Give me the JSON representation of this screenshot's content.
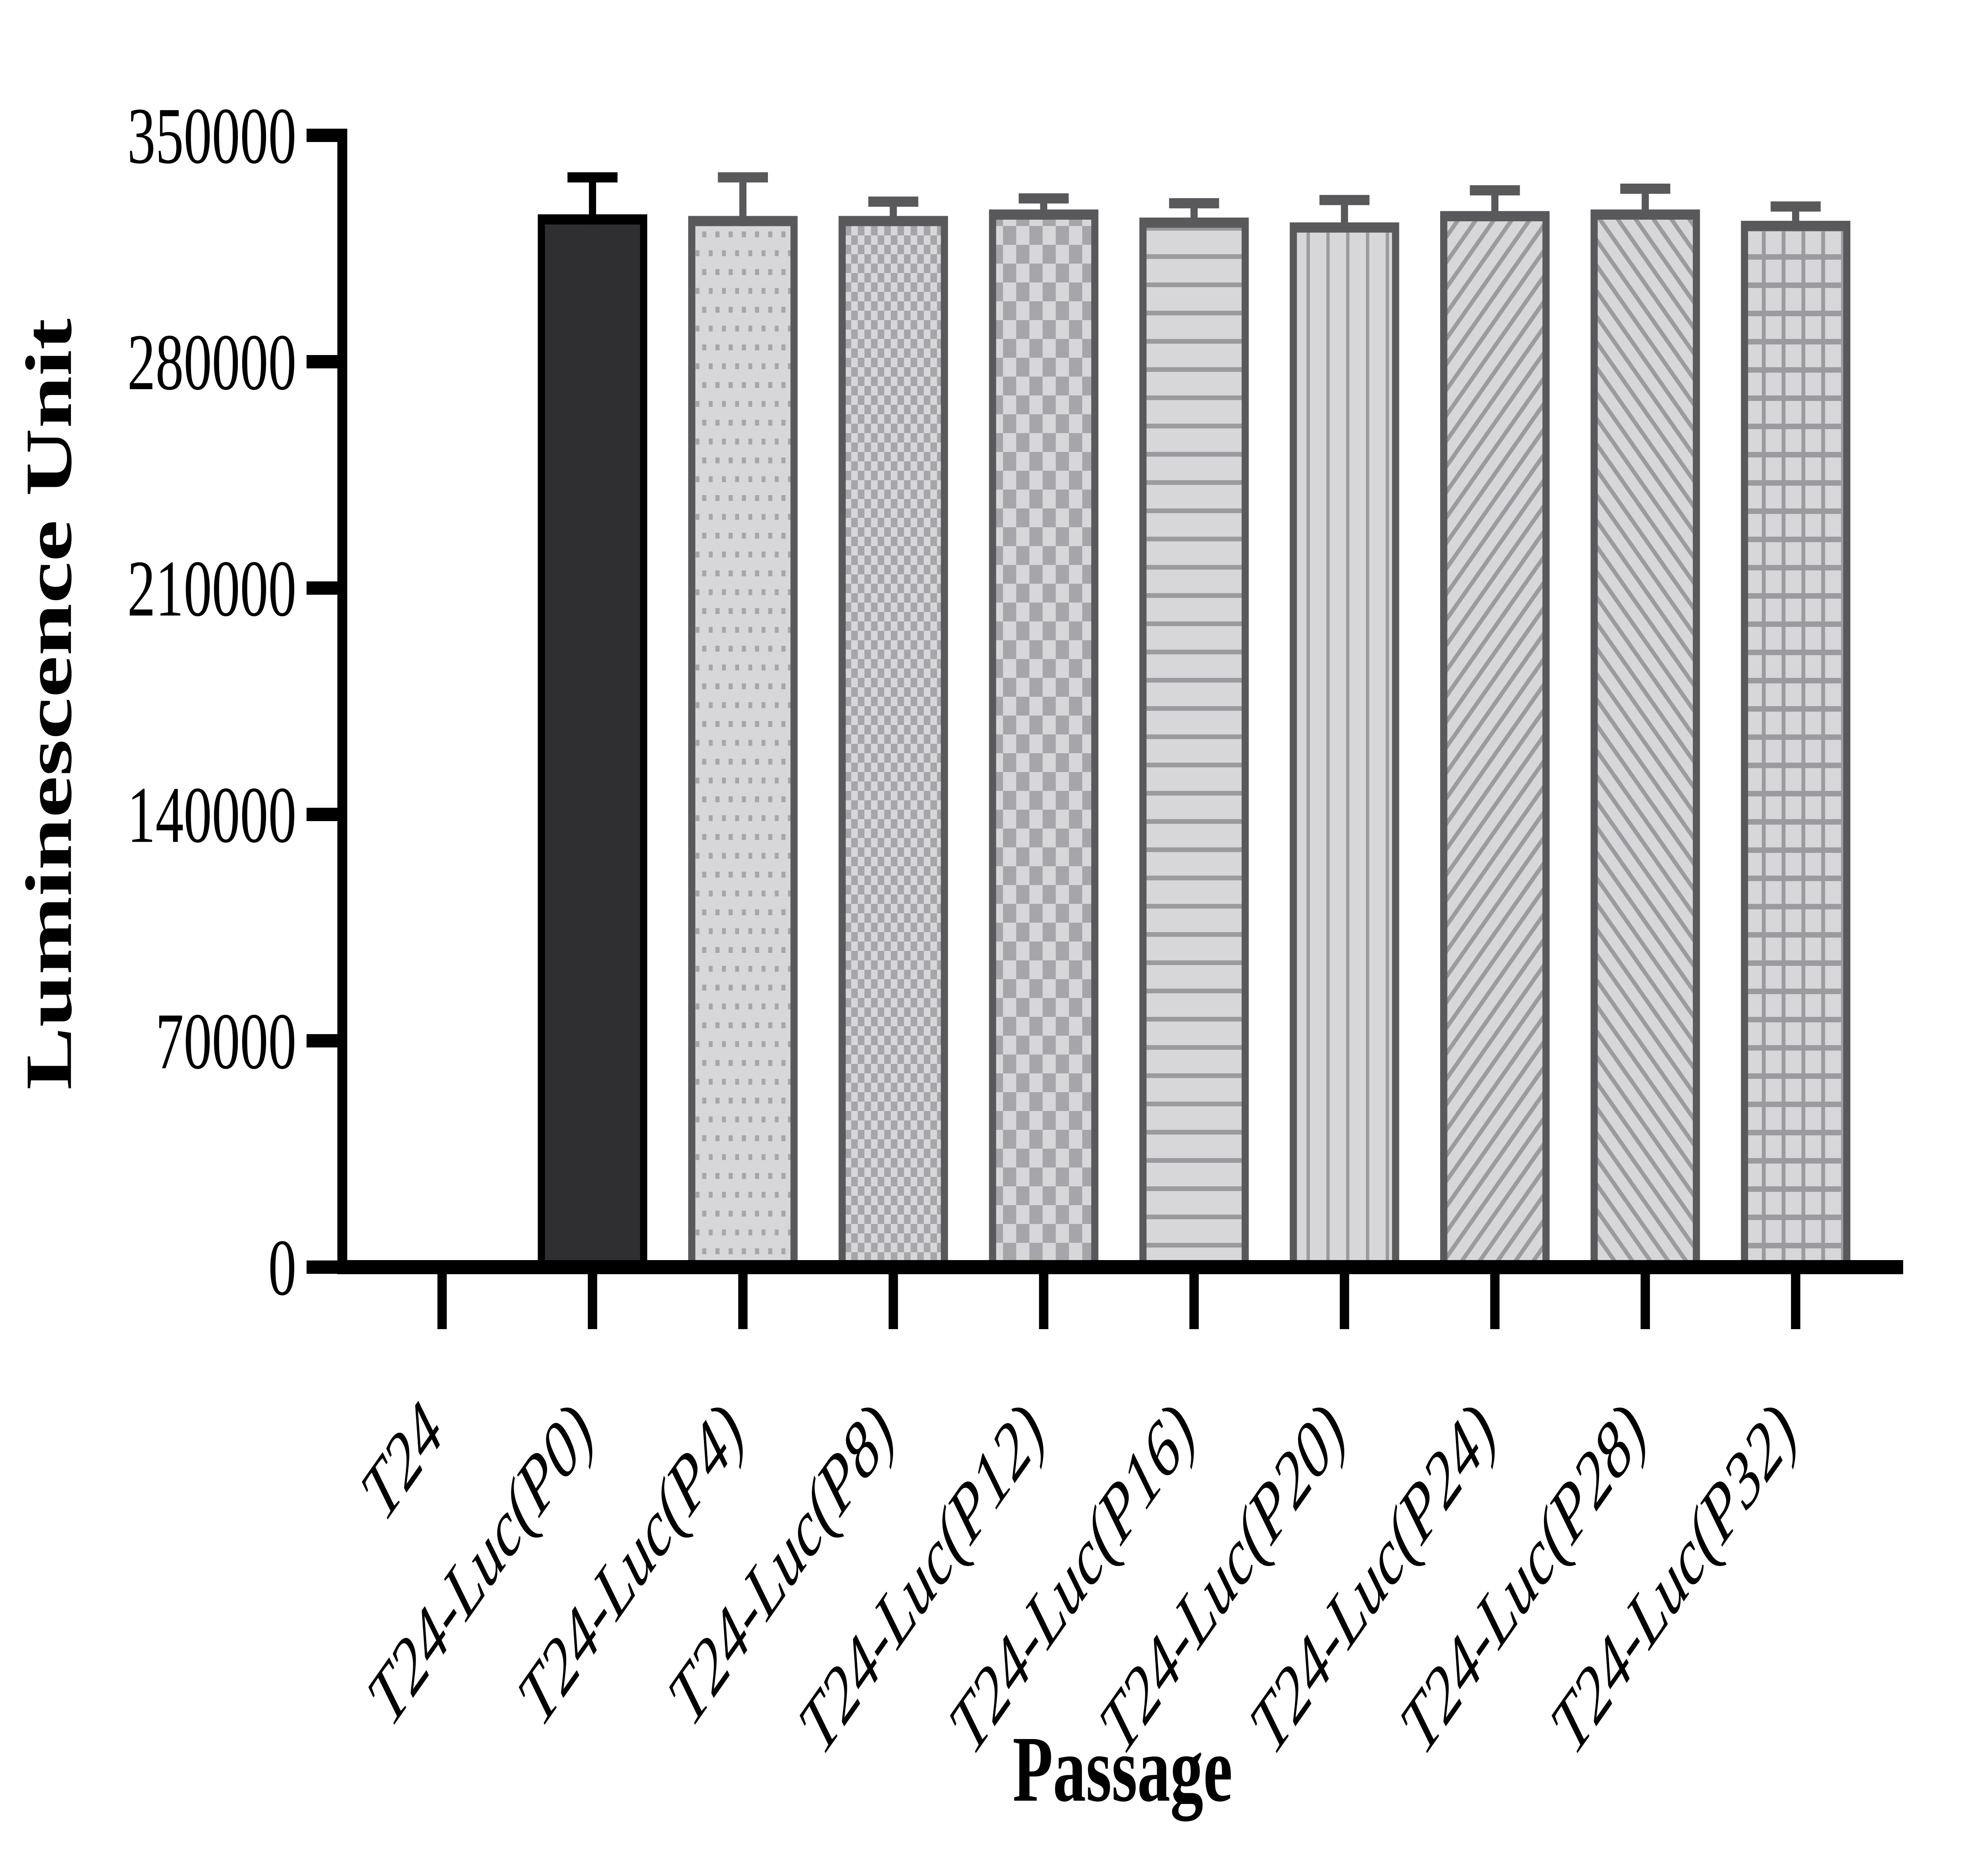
{
  "chart_data": {
    "type": "bar",
    "title": "",
    "xlabel": "Passage",
    "ylabel": "Luminescence Unit",
    "ylim": [
      0,
      350000
    ],
    "yticks": [
      0,
      70000,
      140000,
      210000,
      280000,
      350000
    ],
    "grid": false,
    "legend": false,
    "categories": [
      "T24",
      "T24-Luc(P0)",
      "T24-Luc(P4)",
      "T24-Luc(P8)",
      "T24-Luc(P12)",
      "T24-Luc(P16)",
      "T24-Luc(P20)",
      "T24-Luc(P24)",
      "T24-Luc(P28)",
      "T24-Luc(P32)"
    ],
    "values": [
      0,
      324000,
      323500,
      323500,
      325500,
      323000,
      321500,
      325000,
      325500,
      322000
    ],
    "errors": [
      null,
      13000,
      13500,
      6000,
      5000,
      6000,
      8500,
      8000,
      8000,
      6000
    ],
    "error_style": "upper-sd-cap",
    "bar_patterns": [
      "none",
      "solid-dark",
      "dots",
      "checker-small",
      "checker-large",
      "lines-horizontal",
      "lines-vertical",
      "diagonal-up",
      "diagonal-down",
      "grid"
    ]
  },
  "colors": {
    "background": "#ffffff",
    "axis": "#000000",
    "text": "#000000",
    "dark_bar_fill": "#2f2f31",
    "dark_bar_border": "#000000",
    "dark_bar_error": "#000000",
    "gray_bar_fill": "#d7d7d9",
    "gray_bar_border": "#59595b",
    "gray_bar_error": "#59595b",
    "pattern_dark": "#a6a6aa",
    "pattern_line": "#9b9b9f"
  }
}
